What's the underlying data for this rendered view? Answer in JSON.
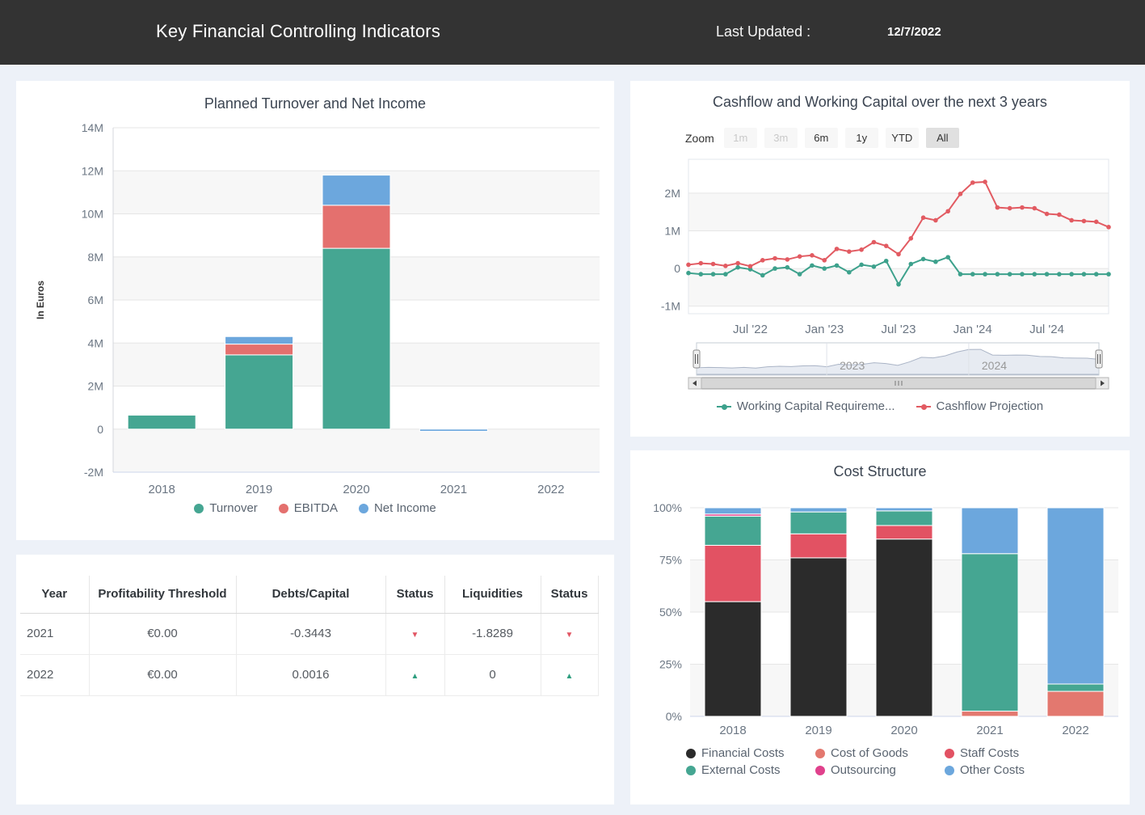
{
  "header": {
    "title": "Key Financial Controlling Indicators",
    "last_updated_label": "Last Updated :",
    "last_updated_value": "12/7/2022"
  },
  "colors": {
    "band_gray": "#f7f7f7",
    "gridline": "#e6e6e6",
    "axis_label": "#6b7683",
    "title_text": "#3b4451",
    "legend_text": "#5a6470",
    "navigator_label": "#999999"
  },
  "chart_data": [
    {
      "id": "turnover",
      "type": "bar",
      "title": "Planned Turnover and Net Income",
      "ylabel": "In Euros",
      "unit": "millions EUR",
      "categories": [
        "2018",
        "2019",
        "2020",
        "2021",
        "2022"
      ],
      "series": [
        {
          "name": "Turnover",
          "color": "#45a692",
          "values": [
            0.65,
            3.45,
            8.4,
            0,
            0
          ]
        },
        {
          "name": "EBITDA",
          "color": "#e4706e",
          "values": [
            0,
            0.5,
            2.0,
            0,
            0
          ]
        },
        {
          "name": "Net Income",
          "color": "#6ca7dd",
          "values": [
            0,
            0.35,
            1.4,
            -0.1,
            0
          ]
        }
      ],
      "ylim": [
        -2,
        14
      ],
      "yticks": [
        {
          "v": 14,
          "label": "14M"
        },
        {
          "v": 12,
          "label": "12M"
        },
        {
          "v": 10,
          "label": "10M"
        },
        {
          "v": 8,
          "label": "8M"
        },
        {
          "v": 6,
          "label": "6M"
        },
        {
          "v": 4,
          "label": "4M"
        },
        {
          "v": 2,
          "label": "2M"
        },
        {
          "v": 0,
          "label": "0"
        },
        {
          "v": -2,
          "label": "-2M"
        }
      ],
      "grid": "alternate-bands",
      "legend_position": "bottom"
    },
    {
      "id": "cashflow",
      "type": "line",
      "title": "Cashflow and Working Capital over the next 3 years",
      "zoom": {
        "label": "Zoom",
        "buttons": [
          {
            "label": "1m",
            "state": "disabled"
          },
          {
            "label": "3m",
            "state": "disabled"
          },
          {
            "label": "6m",
            "state": "normal"
          },
          {
            "label": "1y",
            "state": "normal"
          },
          {
            "label": "YTD",
            "state": "normal"
          },
          {
            "label": "All",
            "state": "selected"
          }
        ]
      },
      "x": [
        "Feb '22",
        "Mar '22",
        "Apr '22",
        "May '22",
        "Jun '22",
        "Jul '22",
        "Aug '22",
        "Sep '22",
        "Oct '22",
        "Nov '22",
        "Dec '22",
        "Jan '23",
        "Feb '23",
        "Mar '23",
        "Apr '23",
        "May '23",
        "Jun '23",
        "Jul '23",
        "Aug '23",
        "Sep '23",
        "Oct '23",
        "Nov '23",
        "Dec '23",
        "Jan '24",
        "Feb '24",
        "Mar '24",
        "Apr '24",
        "May '24",
        "Jun '24",
        "Jul '24",
        "Aug '24",
        "Sep '24",
        "Oct '24",
        "Nov '24",
        "Dec '24"
      ],
      "series": [
        {
          "name": "Working Capital Requireme...",
          "color": "#3da18c",
          "values": [
            -0.12,
            -0.15,
            -0.15,
            -0.15,
            0.03,
            -0.02,
            -0.18,
            0.0,
            0.03,
            -0.15,
            0.08,
            0.0,
            0.08,
            -0.1,
            0.1,
            0.05,
            0.2,
            -0.42,
            0.12,
            0.25,
            0.18,
            0.3,
            -0.15,
            -0.15,
            -0.15,
            -0.15,
            -0.15,
            -0.15,
            -0.15,
            -0.15,
            -0.15,
            -0.15,
            -0.15,
            -0.15,
            -0.15
          ]
        },
        {
          "name": "Cashflow Projection",
          "color": "#e25b62",
          "values": [
            0.1,
            0.14,
            0.12,
            0.07,
            0.14,
            0.06,
            0.22,
            0.27,
            0.24,
            0.32,
            0.35,
            0.22,
            0.52,
            0.45,
            0.5,
            0.7,
            0.6,
            0.38,
            0.8,
            1.35,
            1.28,
            1.52,
            1.98,
            2.28,
            2.3,
            1.62,
            1.6,
            1.62,
            1.6,
            1.45,
            1.43,
            1.28,
            1.26,
            1.24,
            1.1
          ]
        }
      ],
      "unit": "millions EUR",
      "ylim": [
        -1.2,
        2.9
      ],
      "yticks": [
        {
          "v": 2,
          "label": "2M"
        },
        {
          "v": 1,
          "label": "1M"
        },
        {
          "v": 0,
          "label": "0"
        },
        {
          "v": -1,
          "label": "-1M"
        }
      ],
      "xticks": [
        {
          "index": 5,
          "label": "Jul '22"
        },
        {
          "index": 11,
          "label": "Jan '23"
        },
        {
          "index": 17,
          "label": "Jul '23"
        },
        {
          "index": 23,
          "label": "Jan '24"
        },
        {
          "index": 29,
          "label": "Jul '24"
        }
      ],
      "navigator": {
        "year_marks": [
          {
            "index": 11,
            "label": "2023"
          },
          {
            "index": 23,
            "label": "2024"
          }
        ]
      },
      "legend_position": "bottom"
    },
    {
      "id": "cost",
      "type": "stacked-bar-100",
      "title": "Cost Structure",
      "categories": [
        "2018",
        "2019",
        "2020",
        "2021",
        "2022"
      ],
      "legend": [
        {
          "name": "Financial Costs",
          "color": "#2b2b2b"
        },
        {
          "name": "Cost of Goods",
          "color": "#e3786f"
        },
        {
          "name": "Staff Costs",
          "color": "#e25263"
        },
        {
          "name": "External Costs",
          "color": "#45a692"
        },
        {
          "name": "Outsourcing",
          "color": "#e0418c"
        },
        {
          "name": "Other Costs",
          "color": "#6ca7dd"
        }
      ],
      "stacks": [
        [
          {
            "name": "Financial Costs",
            "pct": 55
          },
          {
            "name": "Staff Costs",
            "pct": 27
          },
          {
            "name": "External Costs",
            "pct": 14
          },
          {
            "name": "Outsourcing",
            "pct": 1
          },
          {
            "name": "Other Costs",
            "pct": 3
          }
        ],
        [
          {
            "name": "Financial Costs",
            "pct": 76
          },
          {
            "name": "Staff Costs",
            "pct": 11.5
          },
          {
            "name": "External Costs",
            "pct": 10.5
          },
          {
            "name": "Other Costs",
            "pct": 2
          }
        ],
        [
          {
            "name": "Financial Costs",
            "pct": 85
          },
          {
            "name": "Staff Costs",
            "pct": 6.5
          },
          {
            "name": "External Costs",
            "pct": 7
          },
          {
            "name": "Other Costs",
            "pct": 1.5
          }
        ],
        [
          {
            "name": "Cost of Goods",
            "pct": 2.5
          },
          {
            "name": "External Costs",
            "pct": 75.5
          },
          {
            "name": "Other Costs",
            "pct": 22
          }
        ],
        [
          {
            "name": "Cost of Goods",
            "pct": 12
          },
          {
            "name": "External Costs",
            "pct": 3.5
          },
          {
            "name": "Other Costs",
            "pct": 84.5
          }
        ]
      ],
      "yticks": [
        {
          "v": 100,
          "label": "100%"
        },
        {
          "v": 75,
          "label": "75%"
        },
        {
          "v": 50,
          "label": "50%"
        },
        {
          "v": 25,
          "label": "25%"
        },
        {
          "v": 0,
          "label": "0%"
        }
      ],
      "legend_position": "bottom"
    }
  ],
  "table": {
    "headers": [
      "Year",
      "Profitability Threshold",
      "Debts/Capital",
      "Status",
      "Liquidities",
      "Status"
    ],
    "rows": [
      {
        "year": "2021",
        "profitability_threshold": "€0.00",
        "debts_capital": "-0.3443",
        "debts_status": "down",
        "liquidities": "-1.8289",
        "liquidities_status": "down"
      },
      {
        "year": "2022",
        "profitability_threshold": "€0.00",
        "debts_capital": "0.0016",
        "debts_status": "up",
        "liquidities": "0",
        "liquidities_status": "up"
      }
    ]
  }
}
